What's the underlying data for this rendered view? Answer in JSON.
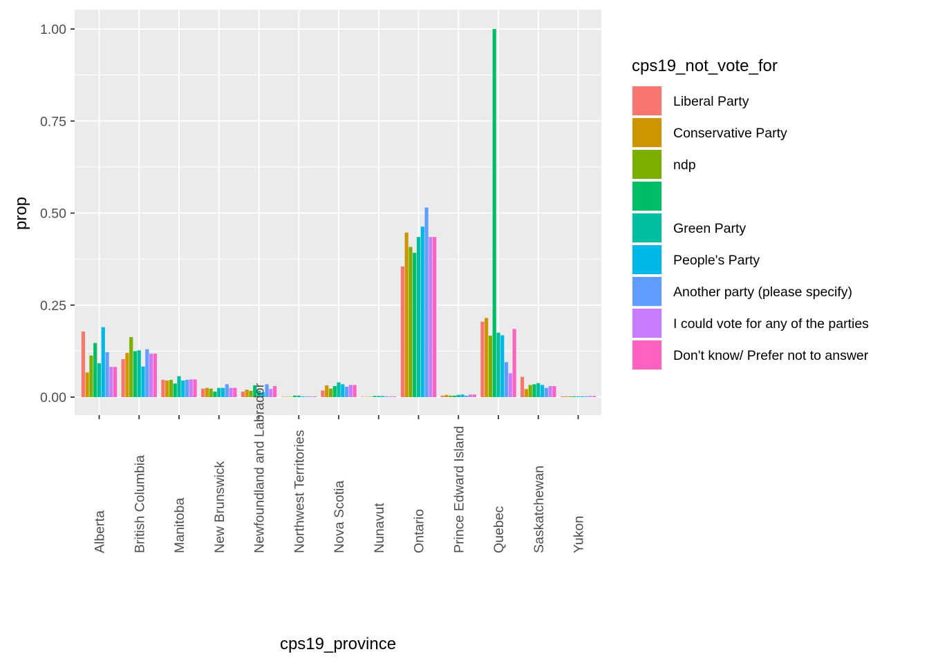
{
  "chart_data": {
    "type": "bar",
    "title": "",
    "xlabel": "cps19_province",
    "ylabel": "prop",
    "ylim": [
      0,
      1.05
    ],
    "y_ticks": [
      0.0,
      0.25,
      0.5,
      0.75,
      1.0
    ],
    "y_tick_labels": [
      "0.00",
      "0.25",
      "0.50",
      "0.75",
      "1.00"
    ],
    "grid": true,
    "legend": {
      "title": "cps19_not_vote_for",
      "position": "right"
    },
    "categories": [
      "Alberta",
      "British Columbia",
      "Manitoba",
      "New Brunswick",
      "Newfoundland and Labrador",
      "Northwest Territories",
      "Nova Scotia",
      "Nunavut",
      "Ontario",
      "Prince Edward Island",
      "Quebec",
      "Saskatchewan",
      "Yukon"
    ],
    "series": [
      {
        "name": "Liberal Party",
        "color": "#F8766D",
        "values": [
          0.178,
          0.103,
          0.047,
          0.023,
          0.015,
          0.001,
          0.018,
          0.001,
          0.355,
          0.004,
          0.205,
          0.055,
          0.002
        ]
      },
      {
        "name": "Conservative Party",
        "color": "#CD9600",
        "values": [
          0.067,
          0.12,
          0.045,
          0.025,
          0.02,
          0.001,
          0.032,
          0.001,
          0.447,
          0.006,
          0.215,
          0.022,
          0.002
        ]
      },
      {
        "name": "ndp",
        "color": "#7CAE00",
        "values": [
          0.113,
          0.163,
          0.047,
          0.023,
          0.017,
          0.001,
          0.023,
          0.001,
          0.408,
          0.004,
          0.167,
          0.033,
          0.002
        ]
      },
      {
        "name": "",
        "color": "#00BE67",
        "values": [
          0.147,
          0.125,
          0.037,
          0.015,
          0.032,
          0.004,
          0.03,
          0.003,
          0.392,
          0.004,
          1.0,
          0.035,
          0.002
        ]
      },
      {
        "name": "Green Party",
        "color": "#00BFA0",
        "values": [
          0.092,
          0.127,
          0.057,
          0.025,
          0.018,
          0.004,
          0.04,
          0.003,
          0.435,
          0.006,
          0.175,
          0.038,
          0.002
        ]
      },
      {
        "name": "People's Party",
        "color": "#00B8E7",
        "values": [
          0.19,
          0.083,
          0.045,
          0.025,
          0.013,
          0.002,
          0.035,
          0.003,
          0.463,
          0.007,
          0.168,
          0.033,
          0.002
        ]
      },
      {
        "name": "Another party (please specify)",
        "color": "#619CFF",
        "values": [
          0.122,
          0.13,
          0.047,
          0.035,
          0.035,
          0.002,
          0.028,
          0.002,
          0.515,
          0.004,
          0.095,
          0.025,
          0.002
        ]
      },
      {
        "name": "I could vote for any of the parties",
        "color": "#C77CFF",
        "values": [
          0.082,
          0.118,
          0.048,
          0.025,
          0.022,
          0.002,
          0.033,
          0.002,
          0.435,
          0.007,
          0.065,
          0.03,
          0.003
        ]
      },
      {
        "name": "Don't know/ Prefer not to answer",
        "color": "#FF61C3",
        "values": [
          0.082,
          0.118,
          0.048,
          0.025,
          0.03,
          0.002,
          0.033,
          0.002,
          0.435,
          0.007,
          0.185,
          0.03,
          0.003
        ]
      }
    ]
  }
}
